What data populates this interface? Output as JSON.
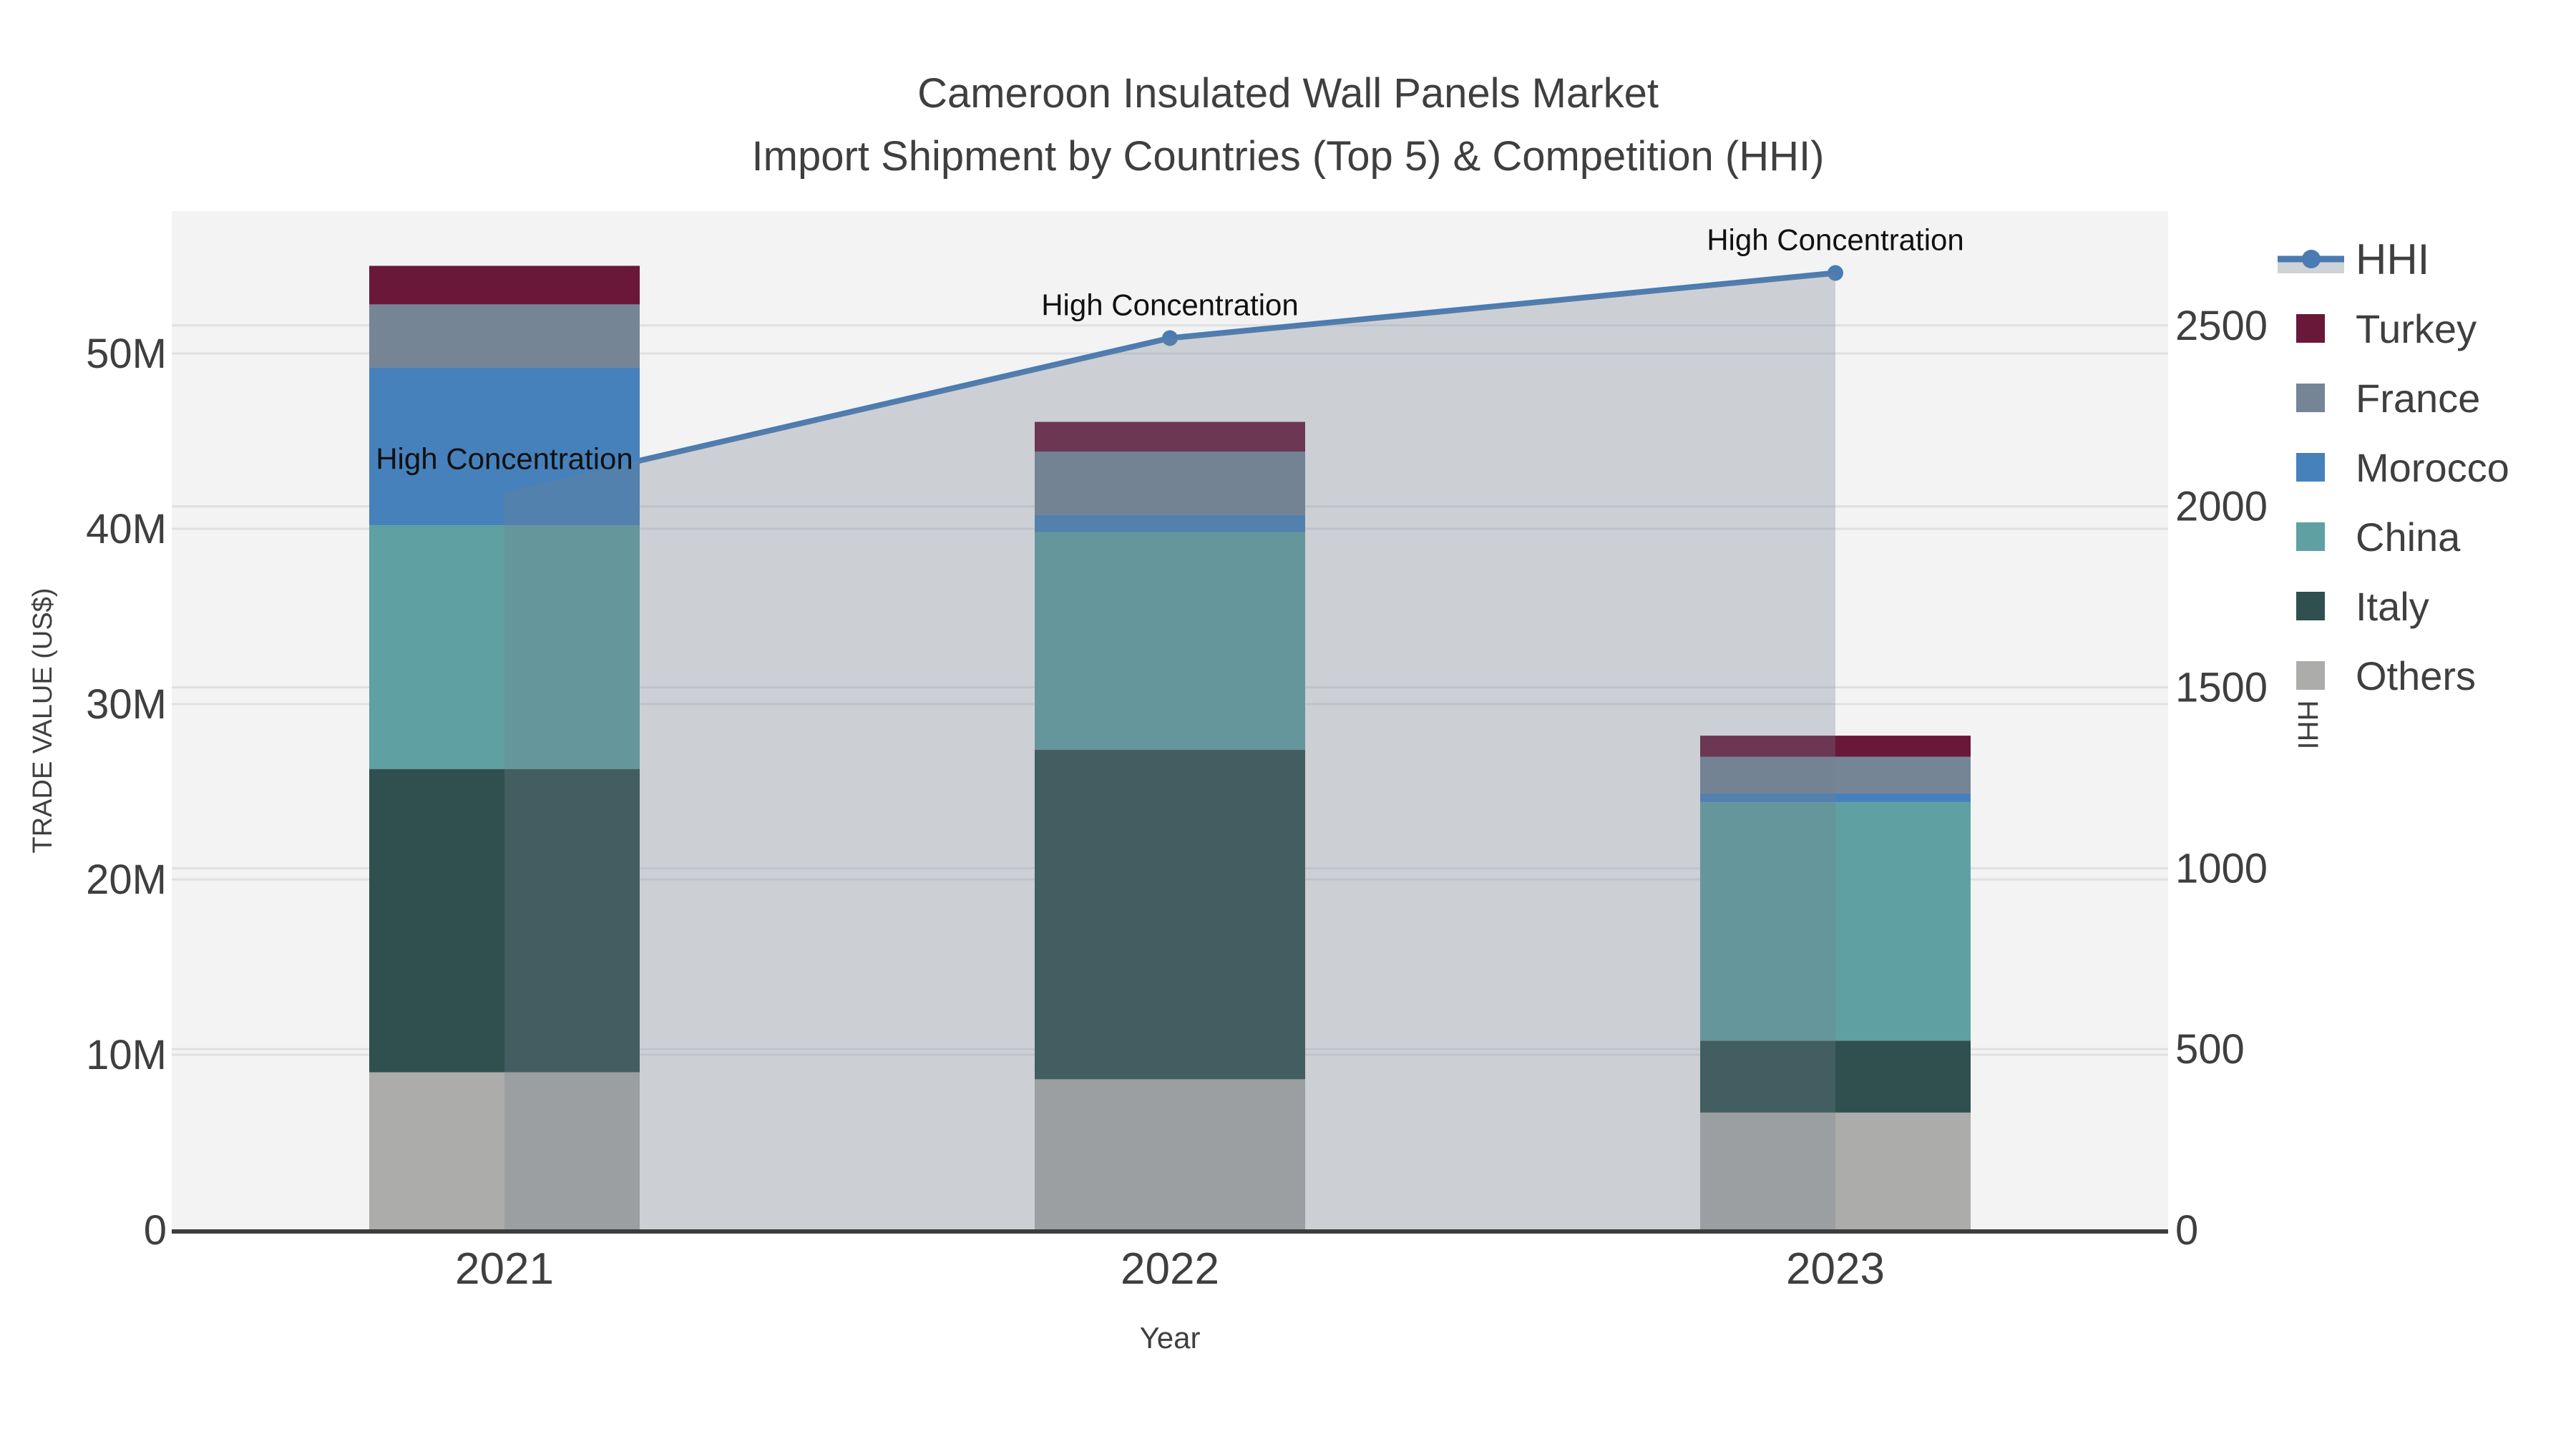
{
  "title": {
    "line1": "Cameroon Insulated Wall Panels Market",
    "line2": "Import Shipment by Countries (Top 5) & Competition (HHI)"
  },
  "axes": {
    "x": {
      "label": "Year",
      "categories": [
        "2021",
        "2022",
        "2023"
      ]
    },
    "left": {
      "label": "TRADE VALUE (US$)",
      "ticks": [
        {
          "label": "0",
          "value": 0
        },
        {
          "label": "10M",
          "value": 10
        },
        {
          "label": "20M",
          "value": 20
        },
        {
          "label": "30M",
          "value": 30
        },
        {
          "label": "40M",
          "value": 40
        },
        {
          "label": "50M",
          "value": 50
        }
      ]
    },
    "right": {
      "label": "HHI",
      "ticks": [
        {
          "label": "0",
          "value": 0
        },
        {
          "label": "500",
          "value": 500
        },
        {
          "label": "1000",
          "value": 1000
        },
        {
          "label": "1500",
          "value": 1500
        },
        {
          "label": "2000",
          "value": 2000
        },
        {
          "label": "2500",
          "value": 2500
        }
      ]
    }
  },
  "legend": [
    {
      "label": "HHI",
      "type": "line",
      "color": "#4a7cb3"
    },
    {
      "label": "Turkey",
      "type": "swatch",
      "color": "#691839"
    },
    {
      "label": "France",
      "type": "swatch",
      "color": "#758596"
    },
    {
      "label": "Morocco",
      "type": "swatch",
      "color": "#4681bc"
    },
    {
      "label": "China",
      "type": "swatch",
      "color": "#5fa0a2"
    },
    {
      "label": "Italy",
      "type": "swatch",
      "color": "#2f504e"
    },
    {
      "label": "Others",
      "type": "swatch",
      "color": "#acacaa"
    }
  ],
  "chart_data": {
    "type": "bar",
    "subtype": "stacked-bars-with-line-overlay",
    "title": "Cameroon Insulated Wall Panels Market — Import Shipment by Countries (Top 5) & Competition (HHI)",
    "categories": [
      "2021",
      "2022",
      "2023"
    ],
    "bar_value_unit": "US$ millions",
    "series": [
      {
        "name": "Turkey",
        "color": "#691839",
        "values": [
          2.2,
          1.7,
          1.2
        ]
      },
      {
        "name": "France",
        "color": "#758596",
        "values": [
          3.6,
          3.6,
          2.1
        ]
      },
      {
        "name": "Morocco",
        "color": "#4681bc",
        "values": [
          9.0,
          1.0,
          0.5
        ]
      },
      {
        "name": "China",
        "color": "#5fa0a2",
        "values": [
          13.9,
          12.4,
          13.6
        ]
      },
      {
        "name": "Italy",
        "color": "#2f504e",
        "values": [
          17.3,
          18.8,
          4.1
        ]
      },
      {
        "name": "Others",
        "color": "#acacaa",
        "values": [
          9.0,
          8.6,
          6.7
        ]
      }
    ],
    "stack_order_bottom_to_top": [
      "Others",
      "Italy",
      "China",
      "Morocco",
      "France",
      "Turkey"
    ],
    "line_series": {
      "name": "HHI",
      "axis": "right",
      "color": "#4a7cb3",
      "values": [
        2040,
        2465,
        2645
      ],
      "area_fill": "#73808f",
      "area_opacity": 0.3
    },
    "annotations": [
      {
        "category": "2021",
        "text": "High Concentration"
      },
      {
        "category": "2022",
        "text": "High Concentration"
      },
      {
        "category": "2023",
        "text": "High Concentration"
      }
    ],
    "xlabel": "Year",
    "ylabel_left": "TRADE VALUE (US$)",
    "ylabel_right": "HHI",
    "ylim_left": [
      0,
      58
    ],
    "ylim_right": [
      0,
      2816
    ],
    "grid": true,
    "legend_position": "right",
    "plot_background": "#f3f3f4"
  }
}
